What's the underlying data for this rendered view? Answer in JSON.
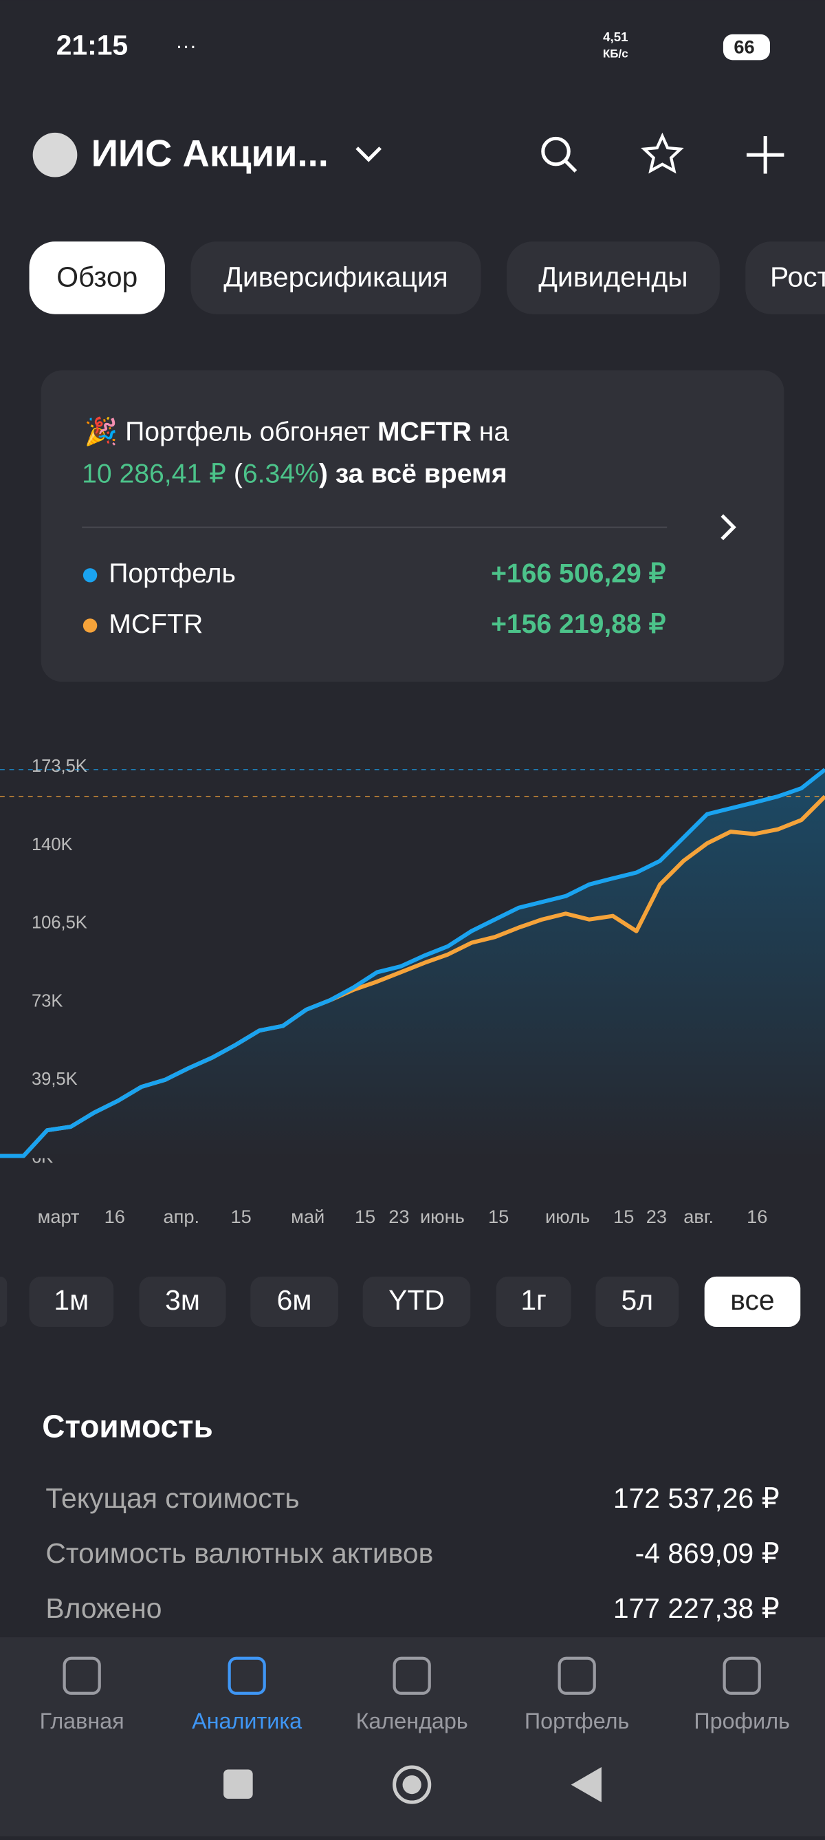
{
  "status_bar": {
    "time": "21:15",
    "speed": "4,51",
    "speed_unit": "КБ/с",
    "battery": "66"
  },
  "header": {
    "title": "ИИС Акции..."
  },
  "tabs": [
    "Обзор",
    "Диверсификация",
    "Дивиденды",
    "Рост"
  ],
  "card": {
    "line1": "Портфель обгоняет ",
    "benchmark": "MCFTR",
    "line1_end": " на",
    "amount": "10 286,41 ₽",
    "open": " (",
    "percent": "6.34%",
    "line2_end": ") за всё время",
    "rows": [
      {
        "name": "Портфель",
        "value": "+166 506,29 ₽"
      },
      {
        "name": "MCFTR",
        "value": "+156 219,88 ₽"
      }
    ]
  },
  "chart_data": {
    "type": "line",
    "ylim": [
      6000,
      173500
    ],
    "yticks": [
      {
        "value": 6000,
        "label": "6K"
      },
      {
        "value": 39500,
        "label": "39,5K"
      },
      {
        "value": 73000,
        "label": "73K"
      },
      {
        "value": 106500,
        "label": "106,5K"
      },
      {
        "value": 140000,
        "label": "140K"
      },
      {
        "value": 173500,
        "label": "173,5K"
      }
    ],
    "x_labels": [
      "март",
      "16",
      "апр.",
      "15",
      "май",
      "15",
      "23",
      "июнь",
      "15",
      "июль",
      "15",
      "23",
      "авг.",
      "16"
    ],
    "series": [
      {
        "name": "Портфель",
        "color": "#1aa3f0",
        "values": [
          7000,
          7000,
          18000,
          19500,
          25600,
          30600,
          36600,
          39600,
          44600,
          49100,
          54600,
          60700,
          62700,
          69700,
          73700,
          79200,
          85700,
          88200,
          92800,
          96800,
          103300,
          108300,
          113300,
          115800,
          118300,
          123300,
          125900,
          128400,
          133400,
          143400,
          153400,
          155900,
          158400,
          161000,
          164500,
          172500
        ]
      },
      {
        "name": "MCFTR",
        "color": "#f5a33a",
        "values": [
          7000,
          7000,
          18000,
          19500,
          25600,
          30600,
          36600,
          39600,
          44600,
          49100,
          54600,
          60700,
          62700,
          69700,
          73700,
          78200,
          81700,
          85700,
          89700,
          93300,
          98300,
          100800,
          104800,
          108300,
          110800,
          108300,
          109800,
          103300,
          123300,
          133400,
          140900,
          145900,
          144900,
          146900,
          150900,
          161000
        ]
      }
    ]
  },
  "periods": [
    "1м",
    "3м",
    "6м",
    "YTD",
    "1г",
    "5л",
    "все"
  ],
  "value_section": {
    "title": "Стоимость",
    "rows": [
      [
        "Текущая стоимость",
        "172 537,26 ₽"
      ],
      [
        "Стоимость валютных активов",
        "-4 869,09 ₽"
      ],
      [
        "Вложено",
        "177 227,38 ₽"
      ]
    ]
  },
  "nav": [
    "Главная",
    "Аналитика",
    "Календарь",
    "Портфель",
    "Профиль"
  ]
}
